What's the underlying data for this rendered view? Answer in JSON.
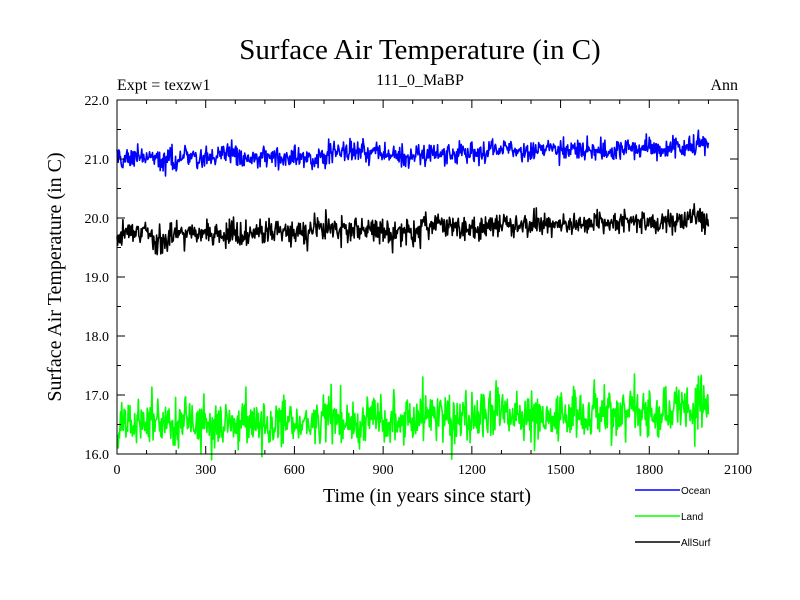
{
  "chart_data": {
    "type": "line",
    "title": "Surface Air Temperature (in C)",
    "subtitle_left": "Expt = texzw1",
    "subtitle_center": "111_0_MaBP",
    "subtitle_right": "Ann",
    "xlabel": "Time (in years since start)",
    "ylabel": "Surface Air Temperature (in C)",
    "xlim": [
      0,
      2100
    ],
    "ylim": [
      16.0,
      22.0
    ],
    "x_ticks": [
      0,
      300,
      600,
      900,
      1200,
      1500,
      1800,
      2100
    ],
    "x_tick_labels": [
      "0",
      "300",
      "600",
      "900",
      "1200",
      "1500",
      "1800",
      "2100"
    ],
    "y_ticks": [
      16.0,
      17.0,
      18.0,
      19.0,
      20.0,
      21.0,
      22.0
    ],
    "y_tick_labels": [
      "16.0",
      "17.0",
      "18.0",
      "19.0",
      "20.0",
      "21.0",
      "22.0"
    ],
    "grid": false,
    "legend_position": "bottom-right, outside plot",
    "x_start": 0,
    "x_end": 2000,
    "x_step": 2,
    "series": [
      {
        "name": "Ocean",
        "color": "#0000ff",
        "start_mean": 21.0,
        "end_mean": 21.2,
        "noise_amplitude": 0.12
      },
      {
        "name": "Land",
        "color": "#00ff00",
        "start_mean": 16.5,
        "end_mean": 16.75,
        "noise_amplitude": 0.28
      },
      {
        "name": "AllSurf",
        "color": "#000000",
        "start_mean": 19.7,
        "end_mean": 19.95,
        "noise_amplitude": 0.14
      }
    ]
  }
}
